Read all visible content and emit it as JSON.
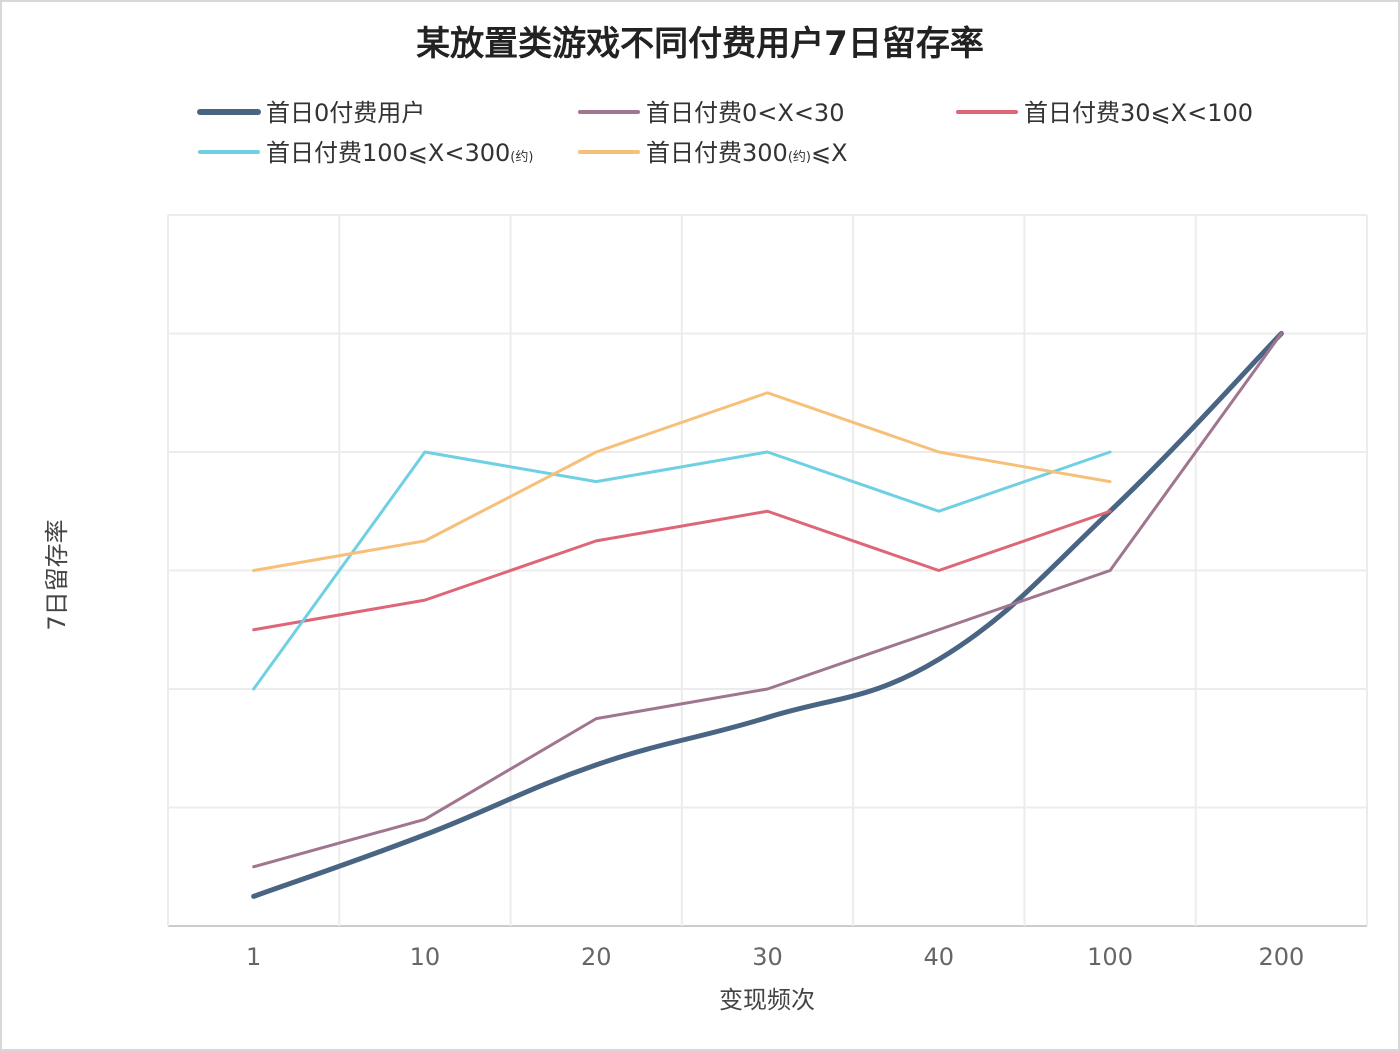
{
  "chart_data": {
    "type": "line",
    "title": "某放置类游戏不同付费用户7日留存率",
    "xlabel": "变现频次",
    "ylabel": "7日留存率",
    "categories": [
      "1",
      "10",
      "20",
      "30",
      "40",
      "100",
      "200"
    ],
    "y_tick_labels_shown": false,
    "y_units": "gridline intervals (axis unlabeled)",
    "ylim": [
      0,
      6
    ],
    "grid": true,
    "legend_position": "top",
    "series": [
      {
        "name": "首日0付费用户",
        "color": "#4a6584",
        "smooth": true,
        "width": 5,
        "values": [
          0.25,
          0.77,
          1.36,
          1.76,
          2.25,
          3.5,
          5.0
        ]
      },
      {
        "name": "首日付费0<X<30",
        "color": "#a0768f",
        "width": 3,
        "values": [
          0.5,
          0.9,
          1.75,
          2.0,
          2.5,
          3.0,
          5.0
        ]
      },
      {
        "name": "首日付费30⩽X<100",
        "color": "#dd6677",
        "width": 3,
        "values": [
          2.5,
          2.75,
          3.25,
          3.5,
          3.0,
          3.5,
          null
        ]
      },
      {
        "name": "首日付费100⩽X<300",
        "name_suffix": "(约)",
        "color": "#6fd0e4",
        "width": 3,
        "values": [
          2.0,
          4.0,
          3.75,
          4.0,
          3.5,
          4.0,
          null
        ]
      },
      {
        "name": "首日付费300",
        "name_suffix": "(约)",
        "name_tail": "⩽X",
        "color": "#f7c07a",
        "width": 3,
        "values": [
          3.0,
          3.25,
          4.0,
          4.5,
          4.0,
          3.75,
          null
        ]
      }
    ]
  }
}
